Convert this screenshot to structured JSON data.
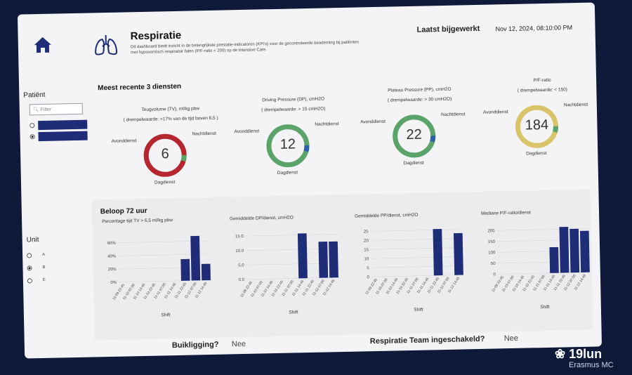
{
  "header": {
    "title": "Respiratie",
    "description": "Dit dashboard biedt inzicht in de belangrijkste prestatie-indicatoren (KPI's) voor de gecontroleerde beademing bij patiënten met hypoxemisch respiratoir falen (P/F-ratio < 200) op de Intensive Care.",
    "updated_label": "Laatst bijgewerkt",
    "updated_value": "Nov 12, 2024, 08:10:00 PM"
  },
  "sidebar": {
    "patient_label": "Patiënt",
    "filter_placeholder": "Filter",
    "unit_label": "Unit",
    "units": [
      "A",
      "B",
      "E"
    ],
    "selected_unit": "B"
  },
  "kpi": {
    "section_title": "Meest recente 3 diensten",
    "cards": [
      {
        "title": "Teugvolume (TV), ml/kg pbw",
        "sub": "( drempelwaarde: >17% van de tijd boven 6,5 )",
        "value": "6",
        "colors": [
          "#b5262e",
          "#5aa46a"
        ]
      },
      {
        "title": "Driving Pressure (DP), cmH2O",
        "sub": "( drempelwaarde: > 15  cmH2O)",
        "value": "12",
        "colors": [
          "#5aa46a",
          "#2f5fa8"
        ]
      },
      {
        "title": "Plateau Pressure (PP), cmH2O",
        "sub": "( drempelwaarde: > 30 cmH2O)",
        "value": "22",
        "colors": [
          "#5aa46a",
          "#2f5fa8"
        ]
      },
      {
        "title": "P/F-ratio",
        "sub": "( drempelwaarde: < 150)",
        "value": "184",
        "colors": [
          "#d9c46a",
          "#5aa46a"
        ]
      }
    ],
    "labels": {
      "left": "Avonddienst",
      "right": "Nachtdienst",
      "bottom": "Dagdienst"
    }
  },
  "trend": {
    "section_title": "Beloop 72 uur",
    "xlabel": "Shift",
    "categories": [
      "11-09 22:45",
      "11-10 07:00",
      "11-10 14:45",
      "11-10 22:45",
      "11-11 07:00",
      "11-11 14:45",
      "11-11 22:45",
      "11-12 07:00",
      "11-12 14:45"
    ]
  },
  "chart_data": [
    {
      "type": "bar",
      "title": "Percentage tijd TV > 6,5 ml/kg pbw",
      "xlabel": "Shift",
      "yticks": [
        "0%",
        "20%",
        "40%",
        "60%"
      ],
      "ylim": [
        0,
        75
      ],
      "values": [
        0,
        0,
        0,
        0,
        0,
        0,
        33,
        68,
        25
      ]
    },
    {
      "type": "bar",
      "title": "Gemiddelde DP/dienst, cmH2O",
      "xlabel": "Shift",
      "yticks": [
        "0.0",
        "5.0",
        "10.0",
        "15.0"
      ],
      "ylim": [
        0,
        17
      ],
      "values": [
        0,
        0,
        0,
        0,
        0,
        15.5,
        0,
        12.5,
        12.5
      ]
    },
    {
      "type": "bar",
      "title": "Gemiddelde PP/dienst, cmH2O",
      "xlabel": "Shift",
      "yticks": [
        "0",
        "5",
        "10",
        "15",
        "20",
        "25"
      ],
      "ylim": [
        0,
        27
      ],
      "values": [
        0,
        0,
        0,
        0,
        0,
        0,
        25.5,
        0,
        23
      ]
    },
    {
      "type": "bar",
      "title": "Mediane P/F-ratio/dienst",
      "xlabel": "Shift",
      "yticks": [
        "0",
        "50",
        "100",
        "150",
        "200"
      ],
      "ylim": [
        0,
        225
      ],
      "values": [
        0,
        0,
        0,
        0,
        0,
        118,
        210,
        200,
        190
      ]
    }
  ],
  "footer": {
    "q1": "Buikligging?",
    "a1": "Nee",
    "q2": "Respiratie Team ingeschakeld?",
    "a2": "Nee"
  },
  "watermark": {
    "brand": "19lun",
    "sub": "Erasmus MC"
  }
}
